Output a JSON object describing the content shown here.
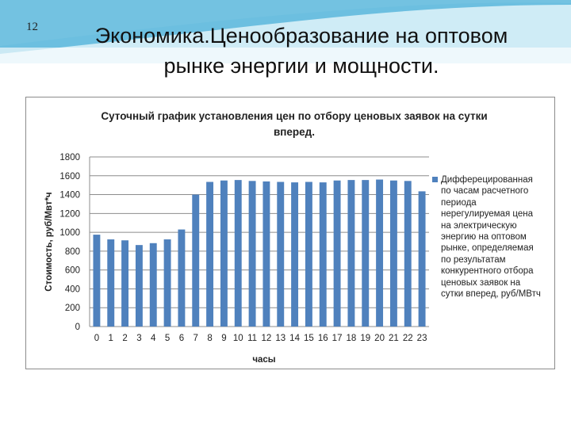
{
  "slide": {
    "number": "12",
    "title_line1": "Экономика.Ценообразование на оптовом",
    "title_line2": "рынке энергии и мощности."
  },
  "colors": {
    "bar": "#4f81bd",
    "gridline": "#8c8c8c",
    "wave_light": "#a8dcef",
    "wave_dark": "#5bb7dc"
  },
  "chart_data": {
    "type": "bar",
    "title": "Суточный график установления цен по отбору ценовых заявок на сутки вперед.",
    "title_line1": "Суточный график установления цен по отбору ценовых заявок на сутки",
    "title_line2": "вперед.",
    "xlabel": "часы",
    "ylabel": "Стоимость, руб/Мвт*ч",
    "ylim": [
      0,
      1800
    ],
    "yticks": [
      0,
      200,
      400,
      600,
      800,
      1000,
      1200,
      1400,
      1600,
      1800
    ],
    "grid": "horizontal",
    "legend_position": "right",
    "categories": [
      "0",
      "1",
      "2",
      "3",
      "4",
      "5",
      "6",
      "7",
      "8",
      "9",
      "10",
      "11",
      "12",
      "13",
      "14",
      "15",
      "16",
      "17",
      "18",
      "19",
      "20",
      "21",
      "22",
      "23"
    ],
    "series": [
      {
        "name": "Дифферецированная по часам расчетного периода нерегулируемая цена на электрическую энергию на оптовом рынке, определяемая по результатам конкурентного отбора ценовых заявок на сутки вперед, руб/МВтч",
        "values": [
          975,
          925,
          915,
          865,
          885,
          925,
          1030,
          1400,
          1535,
          1550,
          1555,
          1545,
          1540,
          1535,
          1530,
          1535,
          1530,
          1550,
          1555,
          1555,
          1560,
          1550,
          1545,
          1435
        ]
      }
    ],
    "legend_lines": [
      "Дифферецированная",
      "по часам расчетного",
      "периода",
      "нерегулируемая цена",
      "на электрическую",
      "энергию на оптовом",
      "рынке, определяемая",
      "по результатам",
      "конкурентного отбора",
      "ценовых заявок на",
      "сутки вперед, руб/МВтч"
    ]
  }
}
